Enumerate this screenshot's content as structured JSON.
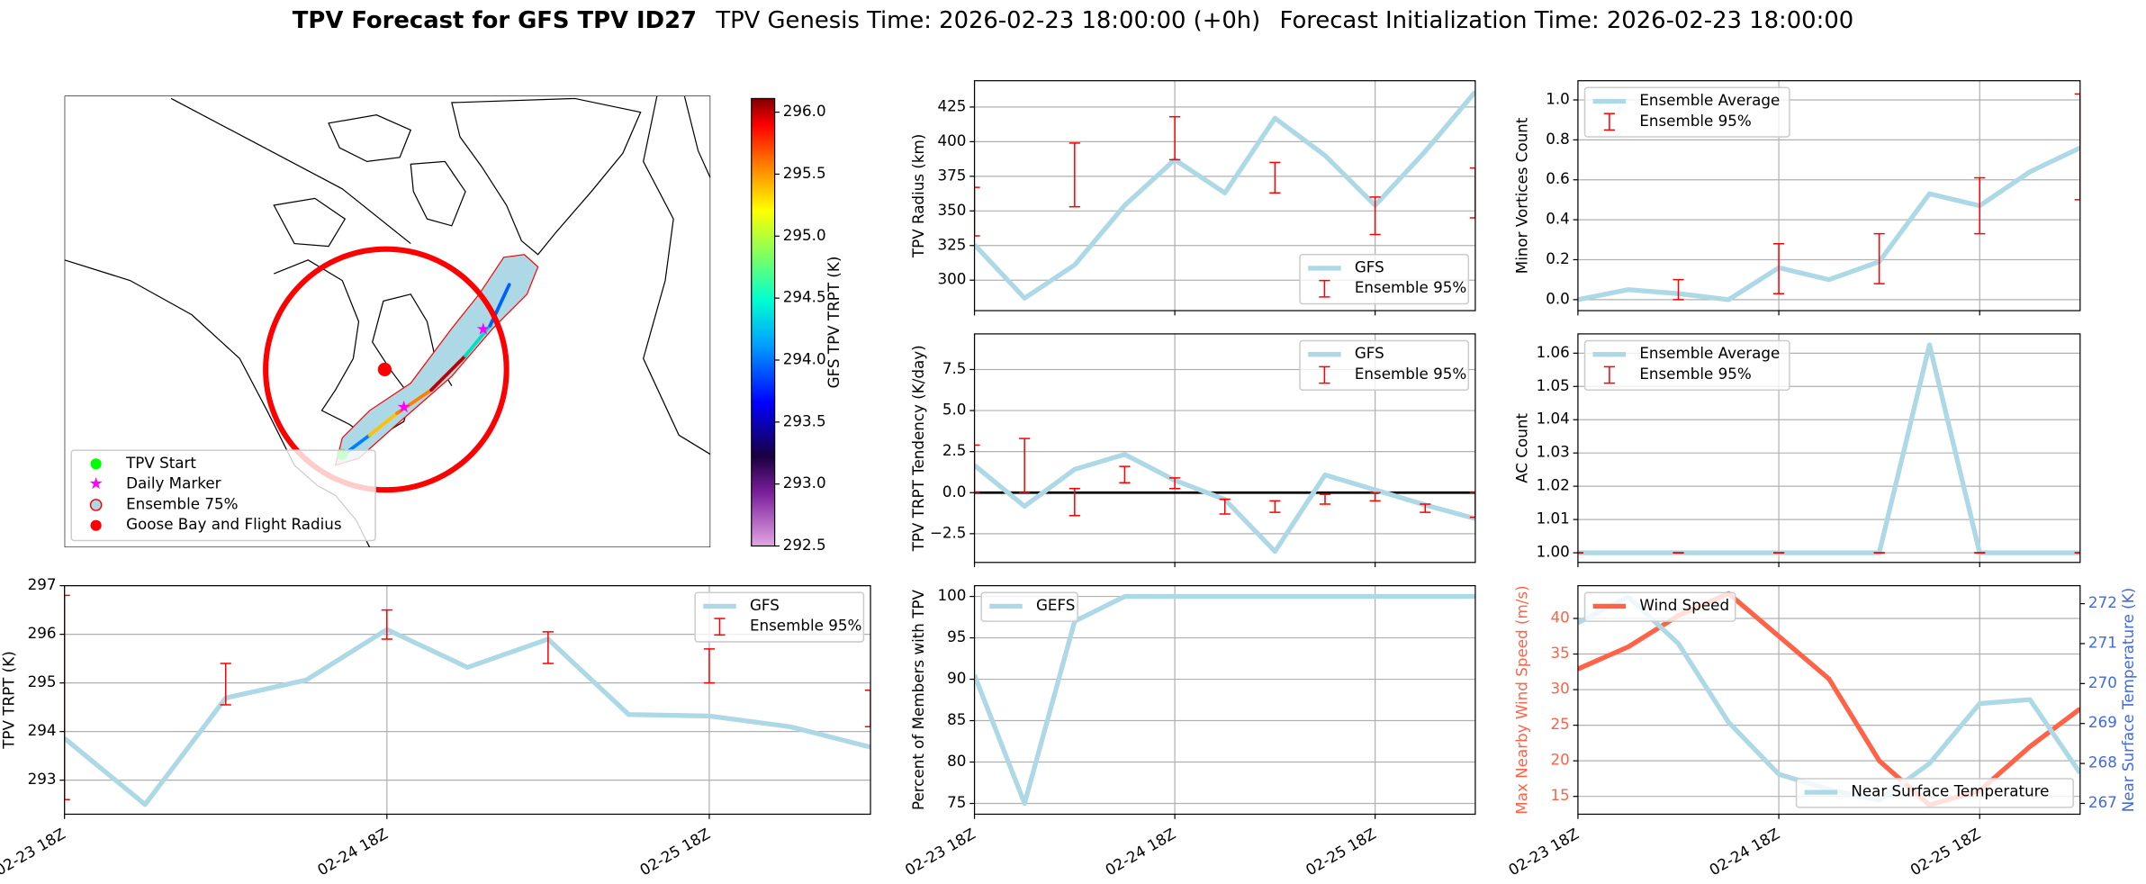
{
  "suptitle": {
    "main": "TPV Forecast for GFS TPV ID27",
    "genesis": "TPV Genesis Time: 2026-02-23 18:00:00 (+0h)",
    "init": "Forecast Initialization Time: 2026-02-23 18:00:00"
  },
  "chart_data": [
    {
      "type": "map",
      "legend_loc": "lower left",
      "legend": [
        {
          "name": "TPV Start",
          "color": "#00ff00",
          "marker": "circle"
        },
        {
          "name": "Daily Marker",
          "color": "#ff00ff",
          "marker": "star"
        },
        {
          "name": "Ensemble 75%",
          "color": "#add8e6",
          "edge": "#ff0000",
          "marker": "circle"
        },
        {
          "name": "Goose Bay and Flight Radius",
          "color": "#ff0000",
          "marker": "circle"
        }
      ],
      "colorbar": {
        "label": "GFS TPV TRPT (K)",
        "lim": [
          292.5,
          296.11
        ],
        "ticks": [
          292.5,
          {
            "value": 293,
            "label": "293.0"
          },
          293.5,
          {
            "value": 294,
            "label": "294.0"
          },
          294.5,
          {
            "value": 295,
            "label": "295.0"
          },
          295.5,
          {
            "value": 296,
            "label": "296.0"
          }
        ]
      }
    },
    {
      "type": "line",
      "ylabel": "TPV Radius (km)",
      "x": [
        0,
        6,
        12,
        18,
        24,
        30,
        36,
        42,
        48,
        54,
        60
      ],
      "xlim": [
        0,
        60
      ],
      "xticks": [
        0,
        24,
        48
      ],
      "xticklabels": false,
      "ylim": [
        278,
        444
      ],
      "yticks": [
        300,
        325,
        350,
        375,
        400,
        425
      ],
      "grid": true,
      "legend": "lower right",
      "series": [
        {
          "name": "GFS",
          "color": "#add8e6",
          "values": [
            325.6,
            287,
            311,
            354,
            387,
            363,
            417,
            390,
            354,
            393,
            436
          ]
        }
      ],
      "errorbars": {
        "name": "Ensemble 95%",
        "color": "#ff0000",
        "x": [
          0,
          12,
          24,
          36,
          48,
          60
        ],
        "lower": [
          332,
          353,
          387,
          363,
          333,
          345
        ],
        "upper": [
          367,
          399,
          418,
          385,
          360,
          381
        ]
      }
    },
    {
      "type": "line",
      "ylabel": "TPV TRPT Tendency (K/day)",
      "x": [
        0,
        6,
        12,
        18,
        24,
        30,
        36,
        42,
        48,
        54,
        60
      ],
      "xlim": [
        0,
        60
      ],
      "xticks": [
        0,
        24,
        48
      ],
      "xticklabels": false,
      "ylim": [
        -4.25,
        9.67
      ],
      "yticks": [
        {
          "value": -2.5,
          "label": "−2.5"
        },
        {
          "value": 0,
          "label": "0.0"
        },
        2.5,
        {
          "value": 5,
          "label": "5.0"
        },
        7.5
      ],
      "grid": true,
      "legend": "upper right",
      "hline": 0,
      "series": [
        {
          "name": "GFS",
          "color": "#add8e6",
          "values": [
            1.67,
            -0.83,
            1.42,
            2.33,
            0.75,
            -0.42,
            -3.58,
            1.08,
            0.17,
            -0.75,
            -1.58
          ]
        }
      ],
      "errorbars": {
        "name": "Ensemble 95%",
        "color": "#ff0000",
        "x": [
          0,
          6,
          12,
          18,
          24,
          30,
          36,
          42,
          48,
          54,
          60
        ],
        "lower": [
          0,
          0,
          -1.4,
          0.6,
          0.25,
          -1.3,
          -1.2,
          -0.7,
          -0.5,
          -1.2,
          -1.5
        ],
        "upper": [
          2.9,
          3.3,
          0.25,
          1.6,
          0.9,
          -0.4,
          -0.5,
          -0.1,
          0,
          -0.7,
          0
        ]
      }
    },
    {
      "type": "line",
      "ylabel": "Percent of Members with TPV",
      "x": [
        0,
        6,
        12,
        18,
        24,
        30,
        36,
        42,
        48,
        54,
        60
      ],
      "xlim": [
        0,
        60
      ],
      "xticks": [
        {
          "value": 0,
          "label": "02-23 18Z"
        },
        {
          "value": 24,
          "label": "02-24 18Z"
        },
        {
          "value": 48,
          "label": "02-25 18Z"
        }
      ],
      "ylim": [
        73.7,
        101.3
      ],
      "yticks": [
        75,
        80,
        85,
        90,
        95,
        100
      ],
      "grid": true,
      "legend": "upper left",
      "series": [
        {
          "name": "GEFS",
          "color": "#add8e6",
          "values": [
            90.5,
            75,
            97,
            100,
            100,
            100,
            100,
            100,
            100,
            100,
            100
          ]
        }
      ]
    },
    {
      "type": "line",
      "ylabel": "TPV TRPT (K)",
      "x": [
        0,
        6,
        12,
        18,
        24,
        30,
        36,
        42,
        48,
        54,
        60
      ],
      "xlim": [
        0,
        60
      ],
      "xticks": [
        {
          "value": 0,
          "label": "02-23 18Z"
        },
        {
          "value": 24,
          "label": "02-24 18Z"
        },
        {
          "value": 48,
          "label": "02-25 18Z"
        }
      ],
      "ylim": [
        292.3,
        297
      ],
      "yticks": [
        293,
        294,
        295,
        296,
        297
      ],
      "grid": true,
      "legend": "upper right",
      "series": [
        {
          "name": "GFS",
          "color": "#add8e6",
          "values": [
            293.86,
            292.5,
            294.69,
            295.06,
            296.1,
            295.32,
            295.9,
            294.35,
            294.32,
            294.1,
            293.68
          ]
        }
      ],
      "errorbars": {
        "name": "Ensemble 95%",
        "color": "#ff0000",
        "x": [
          0,
          12,
          24,
          36,
          48,
          60
        ],
        "lower": [
          292.6,
          294.55,
          295.9,
          295.4,
          295.0,
          294.1
        ],
        "upper": [
          296.8,
          295.4,
          296.5,
          296.05,
          295.7,
          294.85
        ]
      }
    },
    {
      "type": "line",
      "ylabel": "Minor Vortices Count",
      "x": [
        0,
        6,
        12,
        18,
        24,
        30,
        36,
        42,
        48,
        54,
        60
      ],
      "xlim": [
        0,
        60
      ],
      "xticks": [
        0,
        24,
        48
      ],
      "xticklabels": false,
      "ylim": [
        -0.055,
        1.096
      ],
      "yticks": [
        {
          "value": 0,
          "label": "0.0"
        },
        0.2,
        0.4,
        0.6,
        0.8,
        {
          "value": 1,
          "label": "1.0"
        }
      ],
      "grid": true,
      "legend": "upper left",
      "series": [
        {
          "name": "Ensemble Average",
          "color": "#add8e6",
          "values": [
            0,
            0.05,
            0.03,
            0,
            0.16,
            0.1,
            0.19,
            0.53,
            0.47,
            0.64,
            0.76
          ]
        }
      ],
      "errorbars": {
        "name": "Ensemble 95%",
        "color": "#ff0000",
        "x": [
          12,
          24,
          36,
          48,
          60
        ],
        "lower": [
          0,
          0.03,
          0.08,
          0.33,
          0.5
        ],
        "upper": [
          0.1,
          0.28,
          0.33,
          0.61,
          1.03
        ]
      }
    },
    {
      "type": "line",
      "ylabel": "AC Count",
      "x": [
        0,
        6,
        12,
        18,
        24,
        30,
        36,
        42,
        48,
        54,
        60
      ],
      "xlim": [
        0,
        60
      ],
      "xticks": [
        0,
        24,
        48
      ],
      "xticklabels": false,
      "ylim": [
        0.9971,
        1.0658
      ],
      "yticks": [
        {
          "value": 1,
          "label": "1.00"
        },
        1.01,
        1.02,
        1.03,
        1.04,
        1.05,
        1.06
      ],
      "grid": true,
      "legend": "upper left",
      "series": [
        {
          "name": "Ensemble Average",
          "color": "#add8e6",
          "values": [
            1,
            1,
            1,
            1,
            1,
            1,
            1,
            1.0625,
            1,
            1,
            1
          ]
        }
      ],
      "errorbars": {
        "name": "Ensemble 95%",
        "color": "#ff0000",
        "x": [
          0,
          12,
          24,
          36,
          48,
          60
        ],
        "lower": [
          1,
          1,
          1,
          1,
          1,
          1
        ],
        "upper": [
          1,
          1,
          1,
          1,
          1,
          1
        ]
      }
    },
    {
      "type": "line",
      "ylabel": "Max Nearby Wind Speed (m/s)",
      "ylabel_color": "#ff6347",
      "y2label": "Near Surface Temperature (K)",
      "y2label_color": "#4169e1",
      "x": [
        0,
        6,
        12,
        18,
        24,
        30,
        36,
        42,
        48,
        54,
        60
      ],
      "xlim": [
        0,
        60
      ],
      "xticks": [
        {
          "value": 0,
          "label": "02-23 18Z"
        },
        {
          "value": 24,
          "label": "02-24 18Z"
        },
        {
          "value": 48,
          "label": "02-25 18Z"
        }
      ],
      "ylim": [
        12.5,
        44.6
      ],
      "yticks": [
        15,
        20,
        25,
        30,
        35,
        40
      ],
      "y2lim": [
        266.73,
        272.45
      ],
      "y2ticks": [
        267,
        268,
        269,
        270,
        271,
        272
      ],
      "grid": true,
      "series": [
        {
          "name": "Wind Speed",
          "color": "#ff6347",
          "legend": "upper left",
          "values": [
            32.9,
            36.0,
            40.4,
            43.5,
            37.5,
            31.5,
            20,
            13.8,
            15.8,
            22,
            27.3
          ]
        },
        {
          "name": "Near Surface Temperature",
          "color": "#add8e6",
          "axis": "y2",
          "legend": "lower right",
          "values": [
            271.52,
            272.17,
            271.0,
            269.03,
            267.73,
            267.35,
            267.08,
            268.0,
            269.5,
            269.6,
            267.76
          ]
        }
      ]
    }
  ]
}
